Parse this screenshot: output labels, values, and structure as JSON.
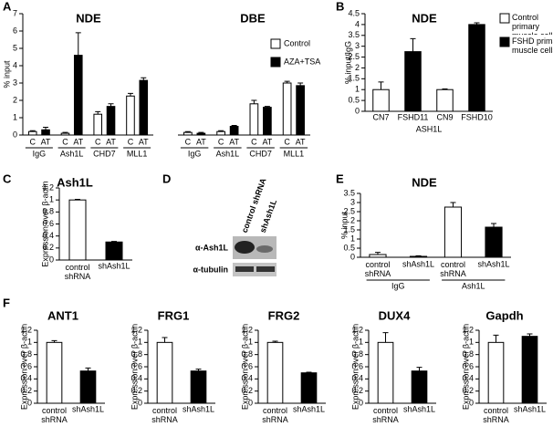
{
  "chart_data": [
    {
      "panel": "A",
      "type": "bar",
      "title": "NDE",
      "ylabel": "% input",
      "categories": [
        "IgG",
        "Ash1L",
        "CHD7",
        "MLL1"
      ],
      "sublabels": [
        "C",
        "AT"
      ],
      "series": [
        {
          "name": "Control",
          "color": "#ffffff",
          "values": [
            0.2,
            0.1,
            1.2,
            2.25
          ],
          "errors": [
            0.05,
            0.05,
            0.15,
            0.15
          ]
        },
        {
          "name": "AZA+TSA",
          "color": "#000000",
          "values": [
            0.3,
            4.6,
            1.65,
            3.15
          ],
          "errors": [
            0.15,
            1.3,
            0.15,
            0.15
          ]
        }
      ],
      "ylim": [
        0,
        7
      ],
      "yticks": [
        0,
        1,
        2,
        3,
        4,
        5,
        6,
        7
      ],
      "legend": "right"
    },
    {
      "type": "bar",
      "title": "DBE",
      "categories": [
        "IgG",
        "Ash1L",
        "CHD7",
        "MLL1"
      ],
      "sublabels": [
        "C",
        "AT"
      ],
      "series": [
        {
          "color": "#ffffff",
          "values": [
            0.15,
            0.2,
            1.8,
            3.0
          ],
          "errors": [
            0.05,
            0.05,
            0.2,
            0.1
          ]
        },
        {
          "color": "#000000",
          "values": [
            0.1,
            0.5,
            1.6,
            2.85
          ],
          "errors": [
            0.05,
            0.05,
            0.05,
            0.15
          ]
        }
      ],
      "ylim": [
        0,
        7
      ]
    },
    {
      "panel": "B",
      "type": "bar",
      "title": "NDE",
      "ylabel": "% input/IgG",
      "xlabel": "ASH1L",
      "categories": [
        "CN7",
        "FSHD11",
        "CN9",
        "FSHD10"
      ],
      "series": [
        {
          "name": "Control primary muscle cells",
          "color": "#ffffff",
          "values": [
            1.0,
            null,
            1.0,
            null
          ],
          "errors": [
            0.35,
            null,
            0.03,
            null
          ]
        },
        {
          "name": "FSHD primary muscle cells",
          "color": "#000000",
          "values": [
            null,
            2.75,
            null,
            4.0
          ],
          "errors": [
            null,
            0.6,
            null,
            0.08
          ]
        }
      ],
      "ylim": [
        0,
        4.5
      ],
      "yticks": [
        0,
        0.5,
        1,
        1.5,
        2,
        2.5,
        3,
        3.5,
        4,
        4.5
      ],
      "legend": "right"
    },
    {
      "panel": "C",
      "type": "bar",
      "title": "Ash1L",
      "ylabel": "Expression over β-actin",
      "categories": [
        "control shRNA",
        "shAsh1L"
      ],
      "values": [
        1.0,
        0.3
      ],
      "errors": [
        0.01,
        0.01
      ],
      "colors": [
        "#ffffff",
        "#000000"
      ],
      "ylim": [
        0,
        1.2
      ],
      "yticks": [
        0,
        0.2,
        0.4,
        0.6,
        0.8,
        1,
        1.2
      ]
    },
    {
      "panel": "E",
      "type": "bar",
      "title": "NDE",
      "ylabel": "% input",
      "categories": [
        "IgG",
        "Ash1L"
      ],
      "sublabels": [
        "control shRNA",
        "shAsh1L"
      ],
      "series": [
        {
          "color": "#ffffff",
          "values": [
            0.15,
            2.75
          ],
          "errors": [
            0.12,
            0.25
          ]
        },
        {
          "color": "#000000",
          "values": [
            0.05,
            1.65
          ],
          "errors": [
            0.03,
            0.2
          ]
        }
      ],
      "ylim": [
        0,
        3.5
      ],
      "yticks": [
        0,
        0.5,
        1,
        1.5,
        2,
        2.5,
        3,
        3.5
      ]
    },
    {
      "panel": "F",
      "type": "bar",
      "title": "ANT1",
      "ylabel": "Expression over β-actin",
      "categories": [
        "control shRNA",
        "shAsh1L"
      ],
      "values": [
        1.0,
        0.53
      ],
      "errors": [
        0.03,
        0.05
      ],
      "colors": [
        "#ffffff",
        "#000000"
      ],
      "ylim": [
        0,
        1.2
      ],
      "yticks": [
        0,
        0.2,
        0.4,
        0.6,
        0.8,
        1,
        1.2
      ]
    },
    {
      "type": "bar",
      "title": "FRG1",
      "ylabel": "Expression over β-actin",
      "categories": [
        "control shRNA",
        "shAsh1L"
      ],
      "values": [
        1.0,
        0.53
      ],
      "errors": [
        0.08,
        0.03
      ],
      "colors": [
        "#ffffff",
        "#000000"
      ],
      "ylim": [
        0,
        1.2
      ],
      "yticks": [
        0,
        0.2,
        0.4,
        0.6,
        0.8,
        1,
        1.2
      ]
    },
    {
      "type": "bar",
      "title": "FRG2",
      "ylabel": "Expression over β-actin",
      "categories": [
        "control shRNA",
        "shAsh1L"
      ],
      "values": [
        1.0,
        0.5
      ],
      "errors": [
        0.02,
        0.01
      ],
      "colors": [
        "#ffffff",
        "#000000"
      ],
      "ylim": [
        0,
        1.2
      ],
      "yticks": [
        0,
        0.2,
        0.4,
        0.6,
        0.8,
        1,
        1.2
      ]
    },
    {
      "type": "bar",
      "title": "DUX4",
      "ylabel": "Expression over β-actin",
      "categories": [
        "control shRNA",
        "shAsh1L"
      ],
      "values": [
        1.0,
        0.53
      ],
      "errors": [
        0.16,
        0.06
      ],
      "colors": [
        "#ffffff",
        "#000000"
      ],
      "ylim": [
        0,
        1.2
      ],
      "yticks": [
        0,
        0.2,
        0.4,
        0.6,
        0.8,
        1,
        1.2
      ]
    },
    {
      "type": "bar",
      "title": "Gapdh",
      "ylabel": "Expression over β-actin",
      "categories": [
        "control shRNA",
        "shAsh1L"
      ],
      "values": [
        1.0,
        1.1
      ],
      "errors": [
        0.12,
        0.04
      ],
      "colors": [
        "#ffffff",
        "#000000"
      ],
      "ylim": [
        0,
        1.2
      ],
      "yticks": [
        0,
        0.2,
        0.4,
        0.6,
        0.8,
        1,
        1.2
      ]
    }
  ],
  "western_blot": {
    "panel": "D",
    "lanes": [
      "control shRNA",
      "shAsh1L"
    ],
    "rows": [
      "α-Ash1L",
      "α-tubulin"
    ]
  }
}
